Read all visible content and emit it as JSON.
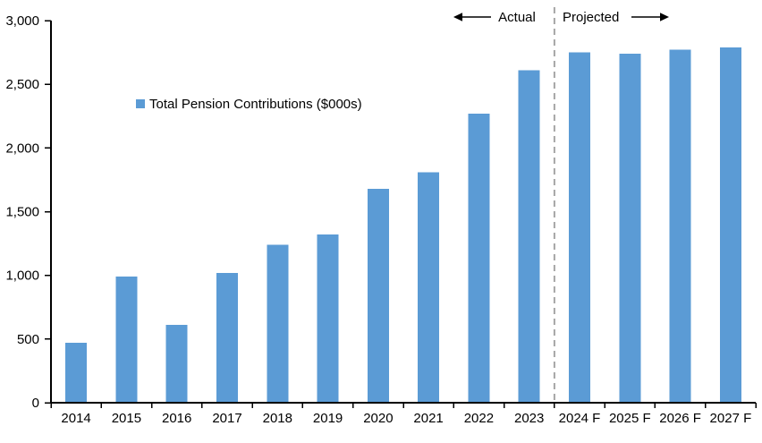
{
  "chart_data": {
    "type": "bar",
    "title": "",
    "legend": "Total Pension Contributions ($000s)",
    "categories": [
      "2014",
      "2015",
      "2016",
      "2017",
      "2018",
      "2019",
      "2020",
      "2021",
      "2022",
      "2023",
      "2024 F",
      "2025 F",
      "2026 F",
      "2027 F"
    ],
    "values": [
      470,
      990,
      610,
      1020,
      1240,
      1320,
      1680,
      1810,
      2270,
      2610,
      2750,
      2740,
      2770,
      2790
    ],
    "xlabel": "",
    "ylabel": "",
    "ylim": [
      0,
      3000
    ],
    "ytick_values": [
      0,
      500,
      1000,
      1500,
      2000,
      2500,
      3000
    ],
    "ytick_labels": [
      "0",
      "500",
      "1,000",
      "1,500",
      "2,000",
      "2,500",
      "3,000"
    ],
    "grid": false,
    "legend_position": "inside-upper-left",
    "bar_color": "#5B9BD5",
    "axis_color": "#000000",
    "divider": {
      "after_category": "2023",
      "style": "dashed",
      "color": "#A6A6A6"
    },
    "annotations": [
      {
        "text": "Actual",
        "arrow": "left",
        "side": "left-of-divider"
      },
      {
        "text": "Projected",
        "arrow": "right",
        "side": "right-of-divider"
      }
    ]
  }
}
